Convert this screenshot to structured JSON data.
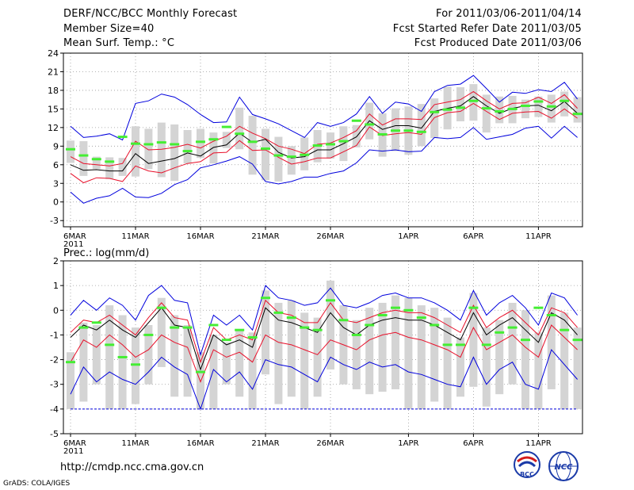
{
  "header": {
    "title": "DERF/NCC/BCC Monthly Forecast",
    "member_size": "Member Size=40",
    "variable": "Mean Surf. Temp.: °C",
    "period": "For 2011/03/06-2011/04/14",
    "started": "Fcst Started Refer Date 2011/03/05",
    "produced": "Fcst Produced Date 2011/03/06"
  },
  "footer": {
    "url": "http://cmdp.ncc.cma.gov.cn",
    "grads": "GrADS: COLA/IGES",
    "logo_bcc": "BCC",
    "logo_ncc": "NCC"
  },
  "colors": {
    "mean": "#000000",
    "inner_band": "#e8102a",
    "outer_band": "#0000dd",
    "box": "#d4d4d4",
    "climo": "#44ee33",
    "frame": "#000000",
    "grid": "#999999"
  },
  "chart_data": [
    {
      "type": "line",
      "title": "Mean Surf. Temp.: °C",
      "x_start": "2011-03-06",
      "days": 40,
      "xticks": [
        {
          "day": 0,
          "label": "6MAR",
          "year": "2011"
        },
        {
          "day": 5,
          "label": "11MAR"
        },
        {
          "day": 10,
          "label": "16MAR"
        },
        {
          "day": 15,
          "label": "21MAR"
        },
        {
          "day": 20,
          "label": "26MAR"
        },
        {
          "day": 26,
          "label": "1APR"
        },
        {
          "day": 31,
          "label": "6APR"
        },
        {
          "day": 36,
          "label": "11APR"
        }
      ],
      "ylim": [
        -4,
        24
      ],
      "yticks": [
        -3,
        0,
        3,
        6,
        9,
        12,
        15,
        18,
        21,
        24
      ],
      "series": [
        {
          "name": "max",
          "values": [
            12.2,
            10.4,
            10.6,
            11.0,
            10.0,
            15.9,
            16.3,
            17.4,
            16.9,
            15.7,
            14.1,
            12.8,
            12.9,
            16.9,
            14.1,
            13.4,
            12.6,
            11.5,
            10.4,
            12.8,
            12.2,
            12.8,
            14.2,
            17.0,
            14.3,
            16.1,
            15.8,
            14.6,
            17.8,
            18.8,
            19.0,
            20.4,
            18.3,
            16.1,
            17.7,
            17.5,
            18.1,
            17.8,
            19.3,
            16.6
          ]
        },
        {
          "name": "upper",
          "values": [
            7.3,
            6.2,
            6.0,
            5.8,
            6.2,
            9.8,
            8.4,
            8.5,
            8.8,
            9.3,
            8.7,
            9.8,
            10.6,
            12.2,
            11.1,
            10.2,
            9.0,
            8.5,
            7.8,
            9.3,
            9.5,
            10.4,
            11.5,
            14.2,
            12.4,
            13.4,
            13.4,
            13.3,
            15.7,
            16.1,
            16.5,
            17.8,
            16.3,
            15.0,
            15.9,
            16.0,
            16.9,
            15.9,
            17.3,
            15.1
          ]
        },
        {
          "name": "mean",
          "values": [
            6.0,
            5.1,
            5.2,
            5.0,
            5.0,
            7.8,
            6.2,
            6.6,
            7.0,
            7.9,
            7.4,
            8.8,
            9.2,
            11.1,
            9.6,
            10.1,
            8.0,
            7.1,
            7.3,
            8.4,
            8.4,
            9.4,
            10.5,
            13.1,
            11.7,
            12.3,
            12.3,
            11.9,
            14.6,
            15.1,
            15.5,
            17.0,
            15.5,
            14.3,
            15.1,
            15.5,
            15.6,
            14.7,
            16.2,
            14.3
          ]
        },
        {
          "name": "lower",
          "values": [
            4.6,
            3.1,
            3.9,
            3.8,
            3.3,
            5.8,
            5.0,
            4.7,
            5.5,
            6.2,
            6.5,
            7.9,
            8.0,
            9.9,
            8.3,
            8.4,
            7.2,
            6.1,
            6.5,
            7.1,
            7.1,
            8.1,
            9.1,
            12.1,
            10.7,
            11.0,
            11.2,
            10.9,
            13.6,
            14.4,
            14.6,
            15.9,
            14.6,
            13.3,
            14.3,
            14.5,
            14.6,
            13.5,
            15.0,
            13.5
          ]
        },
        {
          "name": "min",
          "values": [
            1.6,
            -0.2,
            0.6,
            1.0,
            2.2,
            0.8,
            0.7,
            1.4,
            2.8,
            3.6,
            5.5,
            6.0,
            6.6,
            7.3,
            6.1,
            3.3,
            2.9,
            3.3,
            4.0,
            4.0,
            4.6,
            5.0,
            6.3,
            8.4,
            8.2,
            8.4,
            8.1,
            8.2,
            10.4,
            10.2,
            10.4,
            12.0,
            10.1,
            10.5,
            10.9,
            11.9,
            12.2,
            10.3,
            12.2,
            10.4
          ]
        }
      ],
      "boxes_low": [
        6.3,
        4.2,
        5.3,
        3.7,
        4.2,
        4.1,
        5.3,
        4.0,
        3.4,
        6.2,
        7.1,
        6.2,
        8.7,
        8.5,
        4.4,
        3.5,
        3.3,
        4.4,
        5.1,
        6.4,
        7.0,
        6.6,
        8.8,
        10.1,
        7.3,
        8.2,
        7.6,
        9.0,
        10.3,
        11.7,
        13.0,
        13.1,
        11.2,
        12.7,
        12.7,
        13.5,
        13.7,
        12.8,
        13.8,
        12.8
      ],
      "boxes_high": [
        9.9,
        9.8,
        7.3,
        7.2,
        7.1,
        12.2,
        11.8,
        12.8,
        12.5,
        11.6,
        11.8,
        11.2,
        11.3,
        15.2,
        13.9,
        11.8,
        10.5,
        9.0,
        10.4,
        11.6,
        11.2,
        12.2,
        12.4,
        16.0,
        14.3,
        15.1,
        15.4,
        15.8,
        16.7,
        18.6,
        18.5,
        19.0,
        17.3,
        17.0,
        17.1,
        16.5,
        17.0,
        17.3,
        17.8,
        16.9
      ],
      "climo": [
        8.5,
        7.5,
        6.9,
        6.5,
        10.5,
        9.4,
        9.3,
        9.6,
        9.3,
        8.2,
        9.7,
        10.1,
        12.1,
        11.0,
        9.7,
        8.6,
        7.5,
        7.3,
        7.6,
        9.1,
        9.3,
        9.8,
        13.1,
        12.5,
        10.9,
        11.5,
        11.5,
        11.3,
        14.5,
        14.9,
        15.2,
        16.3,
        15.1,
        14.6,
        15.0,
        15.5,
        16.2,
        15.4,
        16.3,
        14.2
      ]
    },
    {
      "type": "line",
      "title": "Prec.: log(mm/d)",
      "x_start": "2011-03-06",
      "days": 40,
      "xticks": [
        {
          "day": 0,
          "label": "6MAR",
          "year": "2011"
        },
        {
          "day": 5,
          "label": "11MAR"
        },
        {
          "day": 10,
          "label": "16MAR"
        },
        {
          "day": 15,
          "label": "21MAR"
        },
        {
          "day": 20,
          "label": "26MAR"
        },
        {
          "day": 26,
          "label": "1APR"
        },
        {
          "day": 31,
          "label": "6APR"
        },
        {
          "day": 36,
          "label": "11APR"
        }
      ],
      "ylim": [
        -5,
        2
      ],
      "yticks": [
        -5,
        -4,
        -3,
        -2,
        -1,
        0,
        1,
        2
      ],
      "series": [
        {
          "name": "max",
          "values": [
            -0.2,
            0.4,
            0.0,
            0.5,
            0.2,
            -0.4,
            0.6,
            1.0,
            0.4,
            0.3,
            -1.8,
            -0.2,
            -0.6,
            -0.2,
            -0.8,
            1.0,
            0.5,
            0.4,
            0.2,
            0.3,
            0.9,
            0.2,
            0.1,
            0.3,
            0.6,
            0.7,
            0.5,
            0.5,
            0.3,
            0.0,
            -0.4,
            0.8,
            -0.2,
            0.3,
            0.6,
            0.1,
            -0.6,
            0.7,
            0.5,
            -0.2
          ]
        },
        {
          "name": "upper",
          "values": [
            -0.9,
            -0.4,
            -0.5,
            -0.2,
            -0.6,
            -1.0,
            -0.3,
            0.3,
            -0.3,
            -0.4,
            -2.1,
            -0.7,
            -1.2,
            -1.0,
            -1.2,
            0.4,
            -0.1,
            -0.2,
            -0.5,
            -0.5,
            0.3,
            -0.4,
            -0.5,
            -0.3,
            -0.1,
            0.0,
            -0.1,
            -0.1,
            -0.3,
            -0.6,
            -0.9,
            0.2,
            -0.7,
            -0.3,
            0.0,
            -0.5,
            -1.0,
            0.1,
            -0.1,
            -0.7
          ]
        },
        {
          "name": "mean",
          "values": [
            -1.1,
            -0.6,
            -0.8,
            -0.4,
            -0.8,
            -1.1,
            -0.5,
            0.1,
            -0.6,
            -0.7,
            -2.4,
            -1.0,
            -1.4,
            -1.2,
            -1.5,
            0.1,
            -0.4,
            -0.5,
            -0.7,
            -0.9,
            -0.1,
            -0.7,
            -1.0,
            -0.6,
            -0.4,
            -0.3,
            -0.4,
            -0.4,
            -0.6,
            -0.9,
            -1.2,
            -0.1,
            -1.0,
            -0.6,
            -0.3,
            -0.8,
            -1.3,
            -0.1,
            -0.4,
            -1.0
          ]
        },
        {
          "name": "lower",
          "values": [
            -2.1,
            -1.2,
            -1.5,
            -1.0,
            -1.4,
            -1.9,
            -1.6,
            -1.0,
            -1.3,
            -1.5,
            -2.9,
            -1.6,
            -1.9,
            -1.7,
            -2.1,
            -1.0,
            -1.3,
            -1.4,
            -1.6,
            -1.8,
            -1.2,
            -1.4,
            -1.6,
            -1.2,
            -1.0,
            -0.9,
            -1.1,
            -1.2,
            -1.4,
            -1.6,
            -1.9,
            -0.7,
            -1.6,
            -1.3,
            -1.0,
            -1.5,
            -1.9,
            -0.6,
            -1.1,
            -1.6
          ]
        },
        {
          "name": "min",
          "values": [
            -3.4,
            -2.3,
            -2.9,
            -2.5,
            -2.8,
            -3.0,
            -2.5,
            -1.9,
            -2.3,
            -2.6,
            -4.0,
            -2.4,
            -2.9,
            -2.5,
            -3.2,
            -2.0,
            -2.2,
            -2.3,
            -2.6,
            -2.9,
            -1.9,
            -2.2,
            -2.4,
            -2.1,
            -2.3,
            -2.2,
            -2.5,
            -2.6,
            -2.8,
            -3.0,
            -3.1,
            -1.9,
            -3.0,
            -2.4,
            -2.1,
            -3.0,
            -3.2,
            -1.6,
            -2.2,
            -2.8
          ]
        }
      ],
      "baseline": -4,
      "boxes_low": [
        -4.0,
        -3.7,
        -3.0,
        -4.0,
        -4.0,
        -3.8,
        -3.0,
        -2.3,
        -3.5,
        -3.5,
        -4.0,
        -4.0,
        -3.0,
        -3.5,
        -4.0,
        -2.6,
        -3.8,
        -3.5,
        -4.0,
        -3.5,
        -2.4,
        -3.0,
        -3.2,
        -3.4,
        -3.3,
        -3.2,
        -4.0,
        -4.0,
        -3.7,
        -4.0,
        -3.5,
        -3.1,
        -3.9,
        -3.4,
        -3.0,
        -4.0,
        -4.0,
        -3.2,
        -4.0,
        -4.0
      ],
      "boxes_high": [
        -1.7,
        -0.5,
        -0.6,
        0.2,
        -0.2,
        -0.7,
        -0.6,
        0.5,
        -0.2,
        -0.6,
        -1.7,
        -1.0,
        -1.3,
        -0.8,
        -0.9,
        0.8,
        0.3,
        0.4,
        -0.1,
        -0.3,
        1.2,
        0.2,
        -0.4,
        0.1,
        0.3,
        0.6,
        0.5,
        0.2,
        0.1,
        -0.3,
        -1.1,
        0.7,
        -0.7,
        -0.4,
        0.3,
        0.0,
        -0.9,
        0.6,
        -0.1,
        -0.7
      ],
      "climo": [
        -2.1,
        -0.7,
        -0.5,
        -1.4,
        -1.9,
        -2.2,
        -1.0,
        0.1,
        -0.7,
        -0.7,
        -2.5,
        -0.6,
        -1.2,
        -0.8,
        -1.1,
        0.5,
        -0.1,
        -0.3,
        -0.7,
        -0.8,
        0.4,
        -0.4,
        -1.0,
        -0.6,
        -0.2,
        0.1,
        0.0,
        -0.3,
        -0.6,
        -1.4,
        -1.4,
        0.1,
        -1.4,
        -0.9,
        -0.7,
        -1.2,
        0.1,
        -0.2,
        -0.8,
        -1.2
      ]
    }
  ]
}
